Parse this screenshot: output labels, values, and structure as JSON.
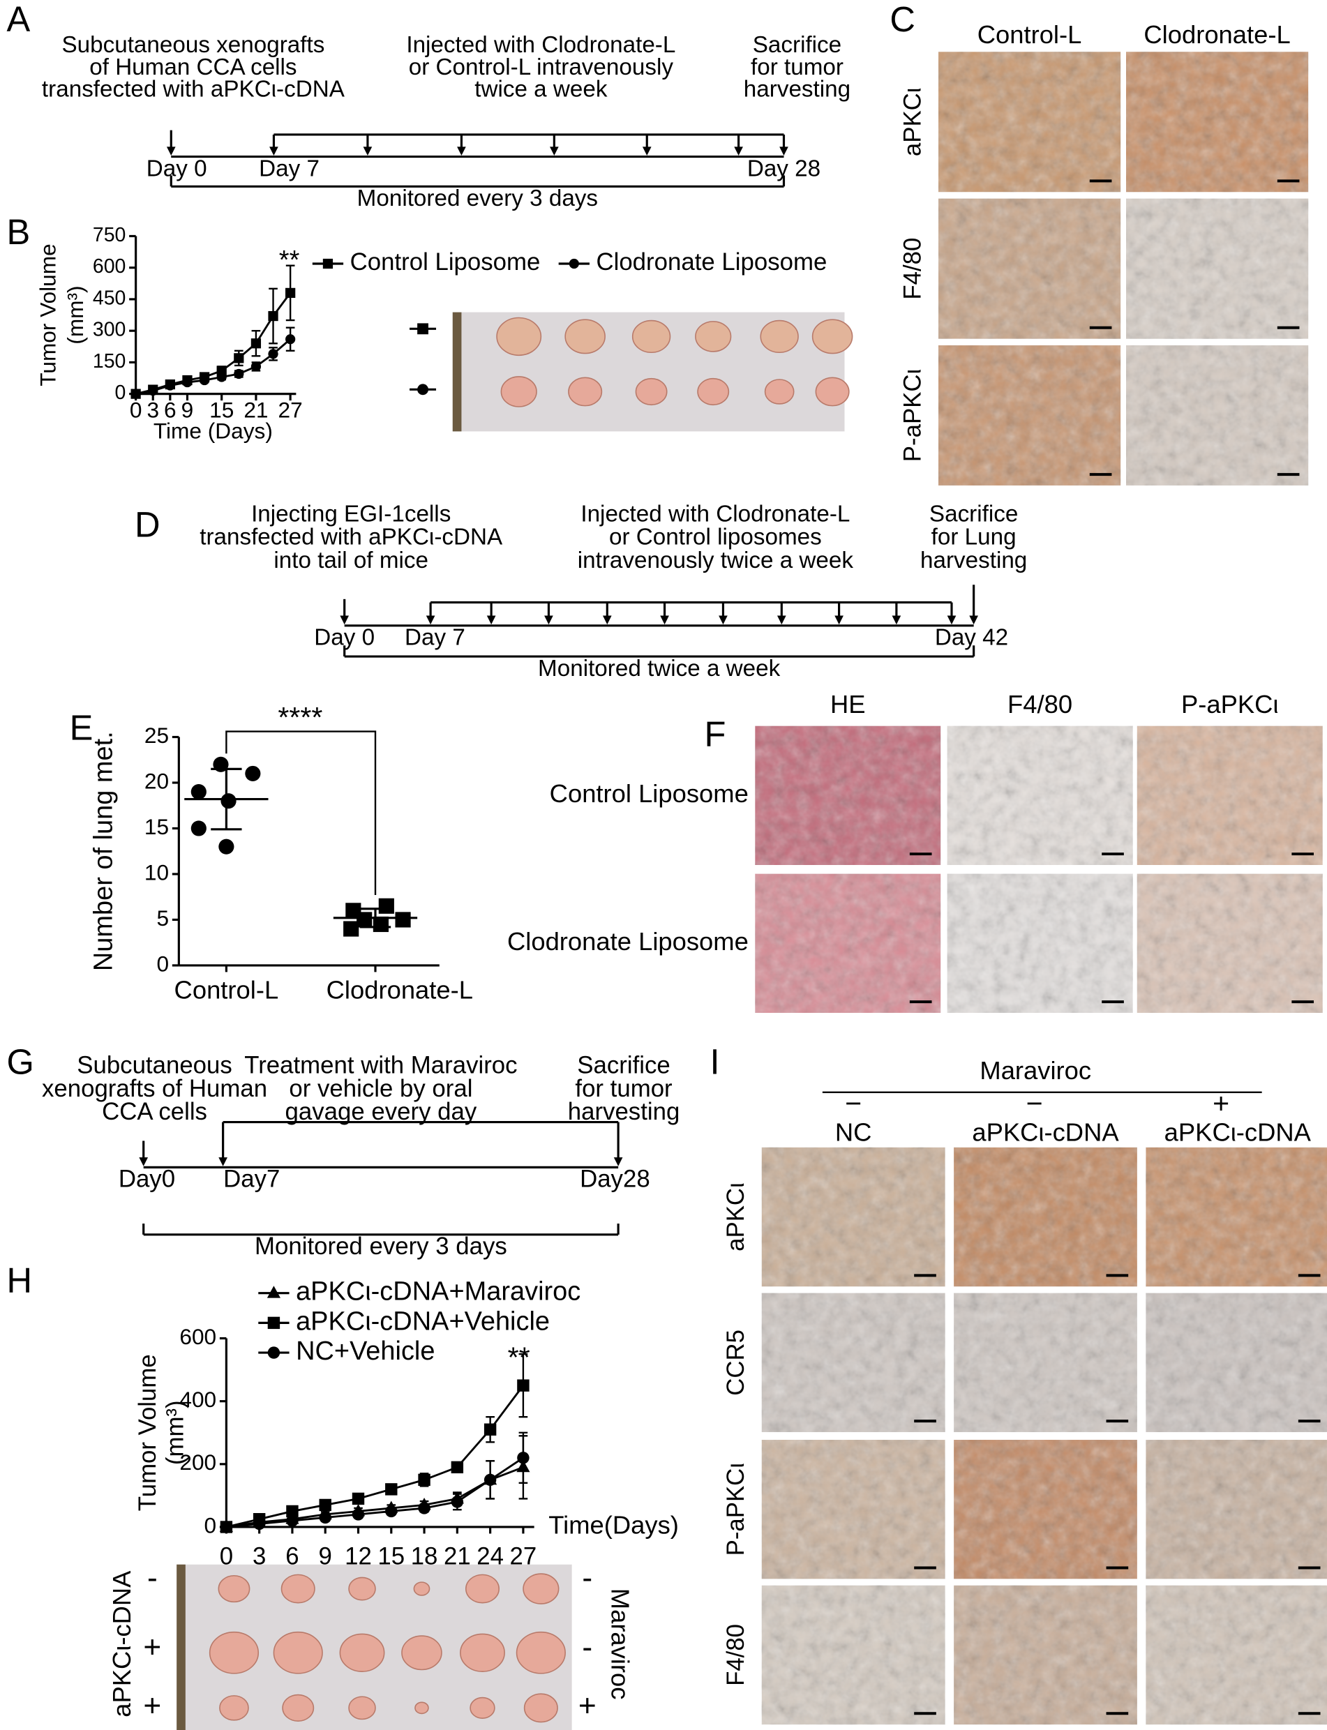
{
  "panel_labels": [
    "A",
    "B",
    "C",
    "D",
    "E",
    "F",
    "G",
    "H",
    "I"
  ],
  "panel_a": {
    "steps": [
      [
        "Subcutaneous xenografts",
        "of Human CCA cells",
        "transfected with aPKCι-cDNA"
      ],
      [
        "Injected with Clodronate-L",
        "or Control-L intravenously",
        "twice a week"
      ],
      [
        "Sacrifice",
        "for tumor",
        "harvesting"
      ]
    ],
    "days": [
      "Day 0",
      "Day 7",
      "Day 28"
    ],
    "note": "Monitored every 3 days"
  },
  "panel_c": {
    "columns": [
      "Control-L",
      "Clodronate-L"
    ],
    "rows": [
      "aPKCι",
      "F4/80",
      "P-aPKCι"
    ]
  },
  "panel_d": {
    "steps": [
      [
        "Injecting EGI-1cells",
        "transfected with aPKCι-cDNA",
        "into tail of mice"
      ],
      [
        "Injected with Clodronate-L",
        "or Control liposomes",
        "intravenously twice a week"
      ],
      [
        "Sacrifice",
        "for Lung",
        "harvesting"
      ]
    ],
    "days": [
      "Day 0",
      "Day 7",
      "Day 42"
    ],
    "note": "Monitored twice a week"
  },
  "panel_f": {
    "columns": [
      "HE",
      "F4/80",
      "P-aPKCι"
    ],
    "rows": [
      "Control Liposome",
      "Clodronate Liposome"
    ]
  },
  "panel_g": {
    "steps": [
      [
        "Subcutaneous",
        "xenografts of Human",
        "CCA cells"
      ],
      [
        "Treatment with Maraviroc",
        "or vehicle by oral",
        "gavage every day"
      ],
      [
        "Sacrifice",
        "for tumor",
        "harvesting"
      ]
    ],
    "days": [
      "Day0",
      "Day7",
      "Day28"
    ],
    "note": "Monitored every 3 days"
  },
  "panel_h_photo": {
    "left_label": "aPKCι-cDNA",
    "left_signs": [
      "-",
      "+",
      "+"
    ],
    "right_label": "Maraviroc",
    "right_signs": [
      "-",
      "-",
      "+"
    ]
  },
  "panel_i": {
    "group": "Maraviroc",
    "signs": [
      "−",
      "−",
      "+"
    ],
    "columns": [
      "NC",
      "aPKCι-cDNA",
      "aPKCι-cDNA"
    ],
    "rows": [
      "aPKCι",
      "CCR5",
      "P-aPKCι",
      "F4/80"
    ]
  },
  "chart_data": [
    {
      "type": "line",
      "x": [
        0,
        3,
        6,
        9,
        12,
        15,
        18,
        21,
        24,
        27
      ],
      "xlim": [
        0,
        28
      ],
      "xticks": [
        0,
        3,
        6,
        9,
        15,
        21,
        27
      ],
      "ylim": [
        0,
        750
      ],
      "yticks": [
        0,
        150,
        300,
        450,
        600,
        750
      ],
      "xlabel": "Time (Days)",
      "ylabel": [
        "Tumor Volume",
        "(mm³)"
      ],
      "annotation": "**",
      "series": [
        {
          "name": "Control Liposome",
          "marker": "square",
          "color": "#000000",
          "values": [
            0,
            20,
            45,
            65,
            80,
            110,
            170,
            240,
            370,
            480
          ],
          "errors": [
            0,
            8,
            10,
            12,
            15,
            20,
            35,
            60,
            130,
            130
          ]
        },
        {
          "name": "Clodronate Liposome",
          "marker": "circle",
          "color": "#000000",
          "values": [
            0,
            15,
            40,
            55,
            65,
            80,
            95,
            130,
            190,
            260
          ],
          "errors": [
            0,
            6,
            8,
            10,
            10,
            12,
            15,
            20,
            30,
            55
          ]
        }
      ]
    },
    {
      "type": "dot",
      "categories": [
        "Control-L",
        "Clodronate-L"
      ],
      "groups": [
        {
          "values": [
            22,
            21,
            19,
            18,
            15,
            13
          ],
          "mean": 18.2,
          "sd": 3.3
        },
        {
          "values": [
            6.5,
            6,
            5,
            5,
            4.5,
            4
          ],
          "mean": 5.2,
          "sd": 1
        }
      ],
      "ylim": [
        0,
        25
      ],
      "yticks": [
        0,
        5,
        10,
        15,
        20,
        25
      ],
      "ylabel": "Number of lung met.",
      "annotation": "****"
    },
    {
      "type": "line",
      "x": [
        0,
        3,
        6,
        9,
        12,
        15,
        18,
        21,
        24,
        27
      ],
      "xlim": [
        0,
        28
      ],
      "xticks": [
        0,
        3,
        6,
        9,
        12,
        15,
        18,
        21,
        24,
        27
      ],
      "ylim": [
        0,
        600
      ],
      "yticks": [
        0,
        200,
        400,
        600
      ],
      "xlabel": "Time(Days)",
      "ylabel": [
        "Tumor Volume",
        "(mm³)"
      ],
      "annotation": "**",
      "series": [
        {
          "name": "aPKCι-cDNA+Maraviroc",
          "marker": "triangle",
          "color": "#000000",
          "values": [
            0,
            15,
            25,
            40,
            50,
            60,
            70,
            90,
            150,
            190
          ],
          "errors": [
            0,
            5,
            6,
            8,
            10,
            10,
            12,
            20,
            60,
            100
          ]
        },
        {
          "name": "aPKCι-cDNA+Vehicle",
          "marker": "square",
          "color": "#000000",
          "values": [
            0,
            25,
            50,
            70,
            90,
            120,
            150,
            190,
            310,
            450
          ],
          "errors": [
            0,
            6,
            8,
            10,
            12,
            15,
            20,
            15,
            40,
            100
          ]
        },
        {
          "name": "NC+Vehicle",
          "marker": "circle",
          "color": "#000000",
          "values": [
            0,
            10,
            20,
            30,
            40,
            50,
            60,
            80,
            150,
            220
          ],
          "errors": [
            0,
            5,
            6,
            8,
            8,
            10,
            12,
            25,
            60,
            80
          ]
        }
      ]
    }
  ]
}
